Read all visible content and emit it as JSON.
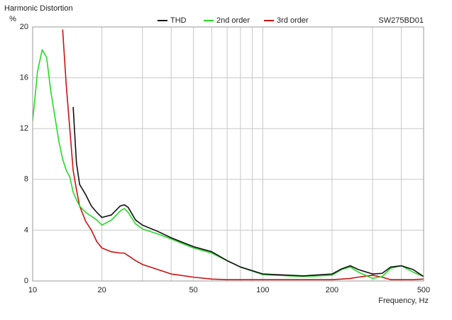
{
  "chart_data": {
    "type": "line",
    "title": "Harmonic Distortion",
    "ylabel": "%",
    "xlabel": "Frequency, Hz",
    "annotation": "SW275BD01",
    "log_x": true,
    "grid": true,
    "xlim": [
      10,
      500
    ],
    "xticks": [
      10,
      20,
      50,
      100,
      200,
      500
    ],
    "xminorticks": [
      30,
      40,
      60,
      70,
      80,
      90,
      300,
      400
    ],
    "ylim": [
      0,
      20
    ],
    "yticks": [
      0,
      4,
      8,
      12,
      16,
      20
    ],
    "x": [
      10,
      10.5,
      11,
      11.5,
      12,
      13,
      13.5,
      14,
      14.5,
      15,
      15.5,
      16,
      17,
      18,
      19,
      20,
      22,
      24,
      25,
      26,
      28,
      30,
      35,
      40,
      50,
      60,
      70,
      80,
      100,
      150,
      200,
      220,
      240,
      260,
      300,
      330,
      360,
      400,
      450,
      500
    ],
    "series": [
      {
        "name": "THD",
        "color": "#111111",
        "values": [
          null,
          null,
          null,
          null,
          null,
          null,
          null,
          null,
          null,
          13.7,
          9.3,
          7.6,
          6.8,
          5.9,
          5.4,
          5.0,
          5.2,
          5.9,
          6.0,
          5.8,
          4.8,
          4.4,
          3.9,
          3.4,
          2.7,
          2.3,
          1.6,
          1.1,
          0.55,
          0.4,
          0.55,
          0.95,
          1.2,
          0.9,
          0.55,
          0.6,
          1.1,
          1.2,
          0.9,
          0.35
        ]
      },
      {
        "name": "2nd order",
        "color": "#22dd22",
        "values": [
          12.6,
          16.5,
          18.2,
          17.6,
          14.9,
          11,
          9.6,
          8.7,
          8.2,
          7,
          6.4,
          5.9,
          5.4,
          5.1,
          4.8,
          4.4,
          4.8,
          5.5,
          5.7,
          5.4,
          4.5,
          4.1,
          3.7,
          3.3,
          2.6,
          2.2,
          1.6,
          1.1,
          0.5,
          0.35,
          0.45,
          0.9,
          1.1,
          0.7,
          0.2,
          0.35,
          1.0,
          1.2,
          0.7,
          0.35
        ]
      },
      {
        "name": "3rd order",
        "color": "#cc1111",
        "values": [
          null,
          null,
          null,
          null,
          null,
          null,
          19.8,
          15.4,
          12,
          8.7,
          7.2,
          5.9,
          4.7,
          4.0,
          3.1,
          2.6,
          2.3,
          2.2,
          2.2,
          2.0,
          1.6,
          1.3,
          0.9,
          0.55,
          0.3,
          0.15,
          0.1,
          0.1,
          0.1,
          0.1,
          0.1,
          0.15,
          0.2,
          0.3,
          0.45,
          0.3,
          0.1,
          0.1,
          0.1,
          0.15
        ]
      }
    ]
  }
}
